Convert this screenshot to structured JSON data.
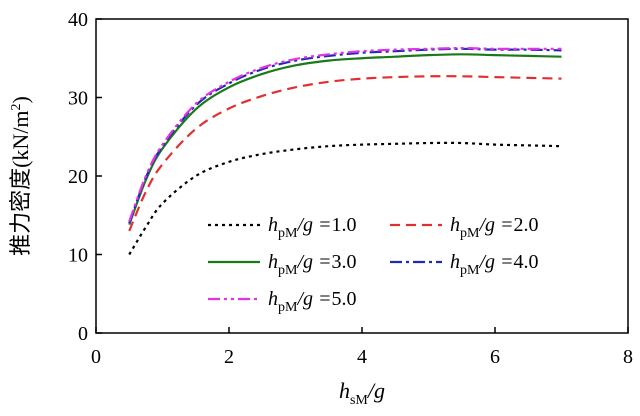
{
  "chart_data": {
    "type": "line",
    "title": "",
    "xlabel": {
      "main": "h",
      "sub": "sM",
      "rest": "/g"
    },
    "ylabel": {
      "main": "推力密度(kN/m",
      "sup": "2",
      "close": ")"
    },
    "xlim": [
      0,
      8
    ],
    "ylim": [
      0,
      40
    ],
    "xticks": [
      0,
      2,
      4,
      6,
      8
    ],
    "yticks": [
      0,
      10,
      20,
      30,
      40
    ],
    "xtick_labels": [
      "0",
      "2",
      "4",
      "6",
      "8"
    ],
    "ytick_labels": [
      "0",
      "10",
      "20",
      "30",
      "40"
    ],
    "grid": false,
    "legend_position": "center-right",
    "series": [
      {
        "name": "h_pM/g = 1.0",
        "label_value": "1.0",
        "color": "#000000",
        "dash": "dotted",
        "x": [
          0.5,
          0.75,
          1.0,
          1.5,
          2.0,
          2.5,
          3.0,
          3.5,
          4.0,
          4.5,
          5.0,
          5.5,
          6.0,
          6.5,
          7.0
        ],
        "values": [
          10.0,
          13.5,
          16.5,
          20.0,
          21.8,
          22.8,
          23.4,
          23.8,
          24.0,
          24.1,
          24.2,
          24.2,
          24.0,
          23.9,
          23.8
        ]
      },
      {
        "name": "h_pM/g = 2.0",
        "label_value": "2.0",
        "color": "#e03030",
        "dash": "dashed",
        "x": [
          0.5,
          0.75,
          1.0,
          1.5,
          2.0,
          2.5,
          3.0,
          3.5,
          4.0,
          4.5,
          5.0,
          5.5,
          6.0,
          6.5,
          7.0
        ],
        "values": [
          13.0,
          18.0,
          21.5,
          26.0,
          28.6,
          30.2,
          31.3,
          32.0,
          32.4,
          32.6,
          32.7,
          32.7,
          32.6,
          32.5,
          32.4
        ]
      },
      {
        "name": "h_pM/g = 3.0",
        "label_value": "3.0",
        "color": "#1a7a1a",
        "dash": "solid",
        "x": [
          0.5,
          0.75,
          1.0,
          1.5,
          2.0,
          2.5,
          3.0,
          3.5,
          4.0,
          4.5,
          5.0,
          5.5,
          6.0,
          6.5,
          7.0
        ],
        "values": [
          13.8,
          19.5,
          23.5,
          28.5,
          31.3,
          33.0,
          34.1,
          34.7,
          35.0,
          35.2,
          35.4,
          35.5,
          35.4,
          35.3,
          35.2
        ]
      },
      {
        "name": "h_pM/g = 4.0",
        "label_value": "4.0",
        "color": "#1f2bb5",
        "dash": "dashdot",
        "x": [
          0.5,
          0.75,
          1.0,
          1.5,
          2.0,
          2.5,
          3.0,
          3.5,
          4.0,
          4.5,
          5.0,
          5.5,
          6.0,
          6.5,
          7.0
        ],
        "values": [
          14.0,
          19.8,
          23.8,
          29.0,
          31.8,
          33.6,
          34.7,
          35.3,
          35.7,
          35.9,
          36.1,
          36.2,
          36.1,
          36.1,
          36.0
        ]
      },
      {
        "name": "h_pM/g = 5.0",
        "label_value": "5.0",
        "color": "#e632e6",
        "dash": "dashdotdot",
        "x": [
          0.5,
          0.75,
          1.0,
          1.5,
          2.0,
          2.5,
          3.0,
          3.5,
          4.0,
          4.5,
          5.0,
          5.5,
          6.0,
          6.5,
          7.0
        ],
        "values": [
          14.2,
          20.0,
          24.0,
          29.2,
          32.0,
          33.8,
          34.9,
          35.5,
          35.9,
          36.1,
          36.2,
          36.3,
          36.2,
          36.2,
          36.2
        ]
      }
    ],
    "legend_label": {
      "main": "h",
      "sub": "pM",
      "rest": "/g ="
    }
  }
}
